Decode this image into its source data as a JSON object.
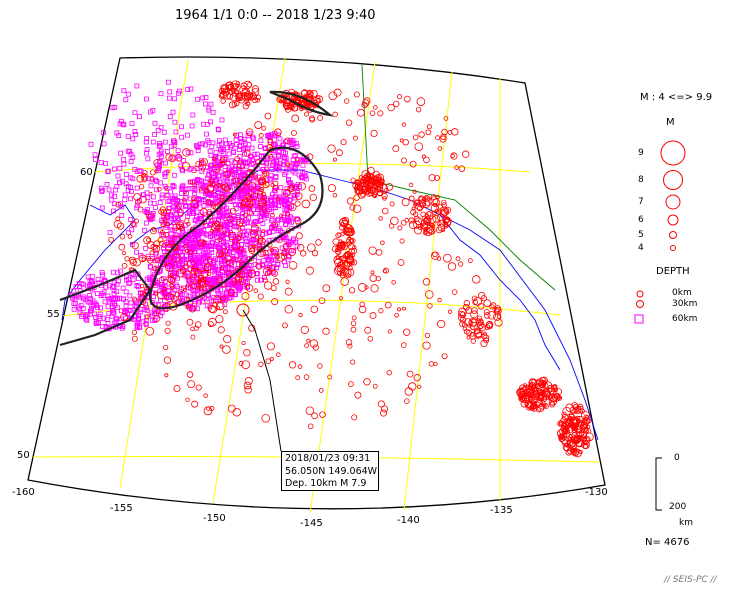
{
  "header": {
    "title": "1964 1/1 0:0 -- 2018 1/23 9:40"
  },
  "legend": {
    "range": "M : 4 <=> 9.9",
    "m_title": "M",
    "magnitudes": [
      "9",
      "8",
      "7",
      "6",
      "5",
      "4"
    ],
    "depth_title": "DEPTH",
    "depths": [
      "0km",
      "30km",
      "60km"
    ],
    "depth_colors": [
      "#ff0000",
      "#ff0000",
      "#ff00ff"
    ]
  },
  "scale": {
    "top": "0",
    "bottom": "200",
    "unit": "km"
  },
  "count": "N= 4676",
  "footer": "// SEIS-PC //",
  "event": {
    "line1": "2018/01/23 09:31",
    "line2": "56.050N  149.064W",
    "line3": "Dep. 10km    M 7.9"
  },
  "grid": {
    "lon_labels": [
      "-160",
      "-155",
      "-150",
      "-145",
      "-140",
      "-135",
      "-130"
    ],
    "lat_labels": [
      "60",
      "55",
      "50"
    ]
  },
  "colors": {
    "graticule": "#ffff00",
    "border": "#000000",
    "coast": "#0000ff",
    "land_border": "#008000",
    "shallow": "#ff0000",
    "deep": "#ff00ff"
  }
}
